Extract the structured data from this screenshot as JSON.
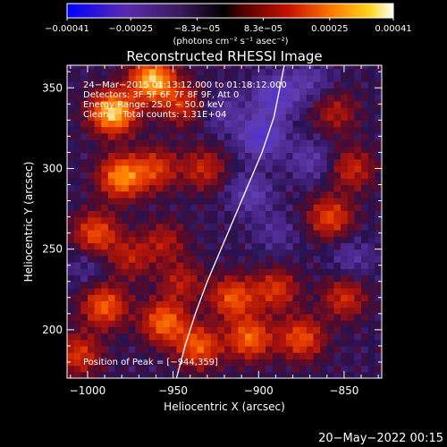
{
  "chart_data": {
    "type": "heatmap",
    "title": "Reconstructed RHESSI Image",
    "xlabel": "Heliocentric X (arcsec)",
    "ylabel": "Heliocentric Y (arcsec)",
    "xlim": [
      -1012,
      -828
    ],
    "ylim": [
      170,
      364
    ],
    "x_ticks": [
      -1000,
      -950,
      -900,
      -850
    ],
    "x_tick_labels": [
      "−1000",
      "−950",
      "−900",
      "−850"
    ],
    "y_ticks": [
      200,
      250,
      300,
      350
    ],
    "y_tick_labels": [
      "200",
      "250",
      "300",
      "350"
    ],
    "colorbar": {
      "range": [
        -0.00041,
        0.00041
      ],
      "ticks": [
        -0.00041,
        -0.00025,
        -8.3e-05,
        8.3e-05,
        0.00025,
        0.00041
      ],
      "tick_labels": [
        "−0.00041",
        "−0.00025",
        "−8.3e−05",
        "8.3e−05",
        "0.00025",
        "0.00041"
      ],
      "units_label": "(photons cm⁻² s⁻¹ asec⁻²)"
    },
    "annotations": [
      "24−Mar−2015 01:13:12.000 to 01:18:12.000",
      "Detectors: 3F 5F 6F 7F 8F 9F, Att 0",
      "Energy Range: 25.0 − 50.0 keV",
      "Clean     Total counts: 1.31E+04"
    ],
    "peak_label": "Position of Peak = [−944,359]",
    "peak": [
      -944,
      359
    ],
    "limb_curve": {
      "x": [
        -948,
        -943,
        -937,
        -930,
        -922,
        -914,
        -906,
        -898,
        -891,
        -885
      ],
      "y": [
        170,
        190,
        210,
        230,
        250,
        270,
        290,
        310,
        332,
        364
      ]
    },
    "hotspots": [
      {
        "x": -985,
        "y": 335,
        "value": 0.00038
      },
      {
        "x": -962,
        "y": 355,
        "value": 0.00036
      },
      {
        "x": -980,
        "y": 295,
        "value": 0.0003
      },
      {
        "x": -995,
        "y": 260,
        "value": 0.00022
      },
      {
        "x": -960,
        "y": 300,
        "value": 0.00018
      },
      {
        "x": -945,
        "y": 340,
        "value": 0.00016
      },
      {
        "x": -990,
        "y": 215,
        "value": 0.00024
      },
      {
        "x": -955,
        "y": 205,
        "value": 0.00026
      },
      {
        "x": -935,
        "y": 190,
        "value": 0.00024
      },
      {
        "x": -915,
        "y": 220,
        "value": 0.00023
      },
      {
        "x": -905,
        "y": 195,
        "value": 0.00025
      },
      {
        "x": -875,
        "y": 195,
        "value": 0.00022
      },
      {
        "x": -890,
        "y": 225,
        "value": 0.00018
      },
      {
        "x": -850,
        "y": 220,
        "value": 0.00016
      },
      {
        "x": -858,
        "y": 270,
        "value": 0.0002
      },
      {
        "x": -845,
        "y": 300,
        "value": 0.00015
      },
      {
        "x": -855,
        "y": 335,
        "value": 0.00012
      },
      {
        "x": -932,
        "y": 300,
        "value": 0.00015
      },
      {
        "x": -955,
        "y": 255,
        "value": 0.00012
      },
      {
        "x": -945,
        "y": 230,
        "value": 0.00013
      },
      {
        "x": -1005,
        "y": 185,
        "value": 0.00018
      },
      {
        "x": -975,
        "y": 245,
        "value": 0.00013
      }
    ],
    "coldspots": [
      {
        "x": -898,
        "y": 320,
        "value": -0.0002
      },
      {
        "x": -890,
        "y": 345,
        "value": -0.00018
      },
      {
        "x": -905,
        "y": 285,
        "value": -0.00012
      },
      {
        "x": -870,
        "y": 305,
        "value": -0.0001
      },
      {
        "x": -845,
        "y": 245,
        "value": -8e-05
      },
      {
        "x": -920,
        "y": 335,
        "value": -9e-05
      },
      {
        "x": -870,
        "y": 355,
        "value": -9e-05
      },
      {
        "x": -890,
        "y": 260,
        "value": -7e-05
      },
      {
        "x": -1000,
        "y": 240,
        "value": -6e-05
      }
    ]
  },
  "timestamp": "20−May−2022 00:15"
}
